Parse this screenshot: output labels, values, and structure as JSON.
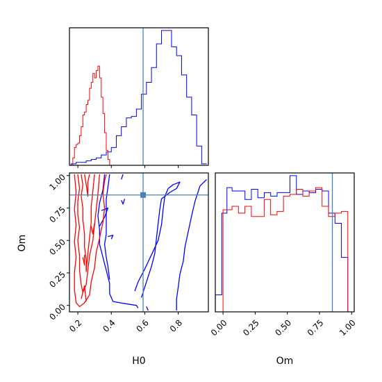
{
  "chart_data": {
    "type": "corner",
    "parameters": [
      "H0",
      "Om"
    ],
    "truth": {
      "H0": 0.59,
      "Om": 0.85
    },
    "colors": {
      "blue": "#0000ff",
      "red": "#ff0000",
      "truth": "#4682b4"
    },
    "panels": [
      {
        "id": "h0-hist",
        "type": "step-histogram",
        "xlim": [
          0.15,
          0.98
        ],
        "x_ticks": [],
        "y_ticks": [],
        "series": [
          {
            "color": "blue",
            "x": [
              0.175,
              0.205,
              0.235,
              0.265,
              0.295,
              0.325,
              0.355,
              0.385,
              0.415,
              0.445,
              0.475,
              0.505,
              0.535,
              0.565,
              0.595,
              0.625,
              0.655,
              0.685,
              0.715,
              0.745,
              0.775,
              0.805,
              0.835,
              0.865,
              0.895,
              0.925,
              0.955
            ],
            "values": [
              1,
              2,
              2,
              3,
              4,
              5,
              7,
              9,
              12,
              20,
              26,
              32,
              33,
              38,
              48,
              56,
              66,
              82,
              91,
              91,
              80,
              74,
              61,
              46,
              34,
              13,
              1
            ]
          },
          {
            "color": "red",
            "x": [
              0.175,
              0.185,
              0.195,
              0.205,
              0.215,
              0.225,
              0.235,
              0.245,
              0.255,
              0.265,
              0.275,
              0.285,
              0.295,
              0.305,
              0.315,
              0.325,
              0.335,
              0.345,
              0.355,
              0.365,
              0.375,
              0.385,
              0.395
            ],
            "values": [
              5,
              12,
              14,
              15,
              20,
              26,
              34,
              36,
              41,
              44,
              52,
              56,
              62,
              59,
              64,
              67,
              59,
              46,
              35,
              22,
              10,
              4,
              0
            ]
          }
        ]
      },
      {
        "id": "om-hist",
        "type": "step-histogram",
        "xlim": [
          -0.06,
          1.02
        ],
        "x_ticks": [
          "0.00",
          "0.25",
          "0.50",
          "0.75",
          "1.00"
        ],
        "x_tick_values": [
          0,
          0.25,
          0.5,
          0.75,
          1.0
        ],
        "xlabel": "Om",
        "series": [
          {
            "color": "blue",
            "x": [
              -0.0345,
              0.0155,
              0.0455,
              0.0955,
              0.1455,
              0.1955,
              0.2455,
              0.2955,
              0.3455,
              0.3955,
              0.4455,
              0.4955,
              0.5455,
              0.5955,
              0.6455,
              0.6955,
              0.7455,
              0.7955,
              0.8455,
              0.8955,
              0.9455,
              0.9955
            ],
            "values": [
              10,
              58,
              73,
              71,
              71,
              66,
              72,
              67,
              70,
              68,
              70,
              70,
              80,
              69,
              71,
              70,
              72,
              71,
              58,
              52,
              32,
              0
            ]
          },
          {
            "color": "red",
            "x": [
              0.015,
              0.045,
              0.095,
              0.145,
              0.195,
              0.245,
              0.295,
              0.345,
              0.395,
              0.445,
              0.495,
              0.545,
              0.595,
              0.645,
              0.695,
              0.745,
              0.795,
              0.845,
              0.895,
              0.945,
              0.995
            ],
            "values": [
              60,
              60,
              62,
              58,
              62,
              56,
              56,
              66,
              57,
              59,
              68,
              69,
              72,
              68,
              71,
              73,
              62,
              56,
              58,
              59,
              0
            ]
          }
        ]
      },
      {
        "id": "joint",
        "type": "contour",
        "xlim": [
          0.15,
          0.98
        ],
        "ylim": [
          -0.05,
          1.02
        ],
        "xlabel": "H0",
        "ylabel": "Om",
        "x_ticks": [
          "0.2",
          "0.4",
          "0.6",
          "0.8"
        ],
        "x_tick_values": [
          0.2,
          0.4,
          0.6,
          0.8
        ],
        "y_ticks": [
          "0.00",
          "0.25",
          "0.50",
          "0.75",
          "1.00"
        ],
        "y_tick_values": [
          0,
          0.25,
          0.5,
          0.75,
          1.0
        ],
        "series": [
          {
            "color": "blue",
            "contours": [
              [
                [
                  0.36,
                  1.01
                ],
                [
                  0.35,
                  0.89
                ],
                [
                  0.33,
                  0.79
                ],
                [
                  0.32,
                  0.69
                ],
                [
                  0.33,
                  0.58
                ],
                [
                  0.33,
                  0.47
                ],
                [
                  0.35,
                  0.37
                ],
                [
                  0.37,
                  0.27
                ],
                [
                  0.39,
                  0.17
                ],
                [
                  0.39,
                  0.09
                ],
                [
                  0.41,
                  0.03
                ],
                [
                  0.45,
                  0.02
                ],
                [
                  0.5,
                  0.01
                ],
                [
                  0.55,
                  0.0
                ],
                [
                  0.56,
                  -0.02
                ]
              ],
              [
                [
                  0.39,
                  1.01
                ],
                [
                  0.38,
                  0.91
                ],
                [
                  0.37,
                  0.82
                ],
                [
                  0.37,
                  0.73
                ],
                [
                  0.37,
                  0.64
                ],
                [
                  0.37,
                  0.55
                ],
                [
                  0.36,
                  0.47
                ],
                [
                  0.37,
                  0.37
                ],
                [
                  0.38,
                  0.3
                ],
                [
                  0.39,
                  0.2
                ]
              ],
              [
                [
                  0.79,
                  -0.04
                ],
                [
                  0.79,
                  0.05
                ],
                [
                  0.8,
                  0.14
                ],
                [
                  0.81,
                  0.24
                ],
                [
                  0.83,
                  0.34
                ],
                [
                  0.84,
                  0.45
                ],
                [
                  0.86,
                  0.57
                ],
                [
                  0.88,
                  0.69
                ],
                [
                  0.9,
                  0.8
                ],
                [
                  0.93,
                  0.92
                ],
                [
                  0.97,
                  0.97
                ]
              ],
              [
                [
                  0.58,
                  0.06
                ],
                [
                  0.61,
                  0.18
                ],
                [
                  0.64,
                  0.3
                ],
                [
                  0.66,
                  0.4
                ],
                [
                  0.67,
                  0.52
                ],
                [
                  0.68,
                  0.63
                ],
                [
                  0.69,
                  0.74
                ],
                [
                  0.7,
                  0.82
                ],
                [
                  0.75,
                  0.87
                ],
                [
                  0.79,
                  0.9
                ],
                [
                  0.81,
                  0.95
                ],
                [
                  0.77,
                  0.93
                ],
                [
                  0.74,
                  0.9
                ],
                [
                  0.72,
                  0.84
                ],
                [
                  0.71,
                  0.74
                ],
                [
                  0.7,
                  0.62
                ],
                [
                  0.68,
                  0.5
                ],
                [
                  0.64,
                  0.39
                ],
                [
                  0.6,
                  0.28
                ],
                [
                  0.56,
                  0.18
                ],
                [
                  0.54,
                  0.11
                ]
              ],
              [
                [
                  0.33,
                  0.61
                ],
                [
                  0.36,
                  0.68
                ],
                [
                  0.38,
                  0.75
                ],
                [
                  0.34,
                  0.73
                ]
              ],
              [
                [
                  0.38,
                  0.53
                ],
                [
                  0.41,
                  0.54
                ],
                [
                  0.4,
                  0.51
                ]
              ],
              [
                [
                  0.46,
                  0.81
                ],
                [
                  0.47,
                  0.78
                ],
                [
                  0.48,
                  0.82
                ]
              ],
              [
                [
                  0.47,
                  1.01
                ],
                [
                  0.46,
                  0.97
                ]
              ],
              [
                [
                  0.61,
                  -0.01
                ],
                [
                  0.62,
                  -0.04
                ]
              ]
            ]
          },
          {
            "color": "red",
            "contours": [
              [
                [
                  0.18,
                  1.01
                ],
                [
                  0.19,
                  0.87
                ],
                [
                  0.18,
                  0.74
                ],
                [
                  0.19,
                  0.62
                ],
                [
                  0.18,
                  0.49
                ],
                [
                  0.19,
                  0.37
                ],
                [
                  0.18,
                  0.25
                ],
                [
                  0.18,
                  0.12
                ],
                [
                  0.19,
                  0.02
                ],
                [
                  0.21,
                  -0.01
                ],
                [
                  0.24,
                  0.02
                ],
                [
                  0.27,
                  0.08
                ],
                [
                  0.28,
                  0.18
                ],
                [
                  0.3,
                  0.29
                ],
                [
                  0.31,
                  0.41
                ],
                [
                  0.33,
                  0.52
                ],
                [
                  0.35,
                  0.64
                ],
                [
                  0.36,
                  0.75
                ],
                [
                  0.35,
                  0.86
                ],
                [
                  0.36,
                  0.96
                ],
                [
                  0.37,
                  1.01
                ]
              ],
              [
                [
                  0.2,
                  1.01
                ],
                [
                  0.21,
                  0.9
                ],
                [
                  0.2,
                  0.8
                ],
                [
                  0.2,
                  0.7
                ],
                [
                  0.21,
                  0.6
                ],
                [
                  0.2,
                  0.5
                ],
                [
                  0.21,
                  0.38
                ],
                [
                  0.21,
                  0.27
                ],
                [
                  0.22,
                  0.16
                ],
                [
                  0.23,
                  0.1
                ],
                [
                  0.25,
                  0.16
                ],
                [
                  0.26,
                  0.27
                ],
                [
                  0.27,
                  0.38
                ],
                [
                  0.29,
                  0.5
                ],
                [
                  0.3,
                  0.62
                ],
                [
                  0.31,
                  0.74
                ],
                [
                  0.32,
                  0.86
                ],
                [
                  0.33,
                  1.01
                ]
              ],
              [
                [
                  0.22,
                  1.01
                ],
                [
                  0.23,
                  0.93
                ],
                [
                  0.22,
                  0.84
                ],
                [
                  0.23,
                  0.75
                ],
                [
                  0.23,
                  0.66
                ],
                [
                  0.24,
                  0.55
                ],
                [
                  0.24,
                  0.45
                ],
                [
                  0.25,
                  0.35
                ],
                [
                  0.25,
                  0.26
                ],
                [
                  0.26,
                  0.4
                ],
                [
                  0.27,
                  0.52
                ],
                [
                  0.28,
                  0.64
                ],
                [
                  0.28,
                  0.76
                ],
                [
                  0.29,
                  0.88
                ],
                [
                  0.3,
                  1.01
                ]
              ],
              [
                [
                  0.24,
                  1.01
                ],
                [
                  0.25,
                  0.93
                ],
                [
                  0.26,
                  0.84
                ],
                [
                  0.26,
                  0.95
                ],
                [
                  0.27,
                  1.01
                ]
              ],
              [
                [
                  0.22,
                  0.05
                ],
                [
                  0.24,
                  0.15
                ],
                [
                  0.25,
                  0.03
                ]
              ],
              [
                [
                  0.23,
                  0.37
                ],
                [
                  0.24,
                  0.31
                ],
                [
                  0.24,
                  0.39
                ]
              ],
              [
                [
                  0.28,
                  0.61
                ],
                [
                  0.29,
                  0.55
                ],
                [
                  0.3,
                  0.63
                ]
              ]
            ]
          }
        ]
      }
    ]
  }
}
